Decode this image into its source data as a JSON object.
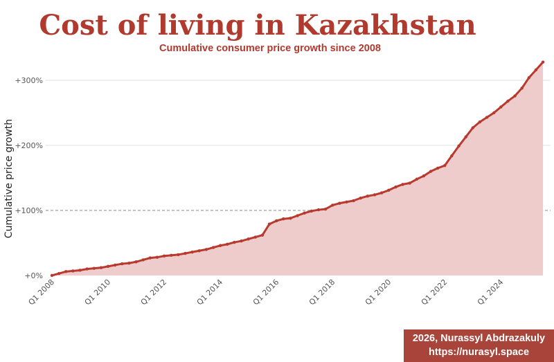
{
  "chart_data": {
    "type": "area",
    "title": "Cost of living in Kazakhstan",
    "subtitle": "Cumulative consumer price growth since 2008",
    "xlabel": "",
    "ylabel": "Cumulative price growth",
    "ylim": [
      0,
      330
    ],
    "yticks": [
      0,
      100,
      200,
      300
    ],
    "ytick_labels": [
      "+0%",
      "+100%",
      "+200%",
      "+300%"
    ],
    "reference_line": 100,
    "xtick_labels": [
      "Q1 2008",
      "Q1 2010",
      "Q1 2012",
      "Q1 2014",
      "Q1 2016",
      "Q1 2018",
      "Q1 2020",
      "Q1 2022",
      "Q1 2024"
    ],
    "x_start": "Q1 2008",
    "x_end": "Q3 2025",
    "grid": true,
    "series": [
      {
        "name": "Cumulative price growth (%)",
        "color": "#b83a2e",
        "fill": "#eecccb",
        "values": [
          0,
          3,
          6,
          7,
          8,
          10,
          11,
          12,
          14,
          16,
          18,
          19,
          21,
          24,
          27,
          28,
          30,
          31,
          32,
          34,
          36,
          38,
          40,
          43,
          46,
          48,
          51,
          53,
          56,
          59,
          62,
          79,
          84,
          87,
          88,
          92,
          96,
          99,
          101,
          102,
          108,
          111,
          113,
          115,
          119,
          122,
          124,
          127,
          131,
          136,
          140,
          142,
          148,
          153,
          160,
          165,
          169,
          184,
          199,
          213,
          227,
          236,
          243,
          250,
          259,
          268,
          276,
          288,
          304,
          316,
          328
        ]
      }
    ]
  },
  "credit": {
    "line1": "2026, Nurassyl Abdrazakuly",
    "line2": "https://nurasyl.space"
  }
}
